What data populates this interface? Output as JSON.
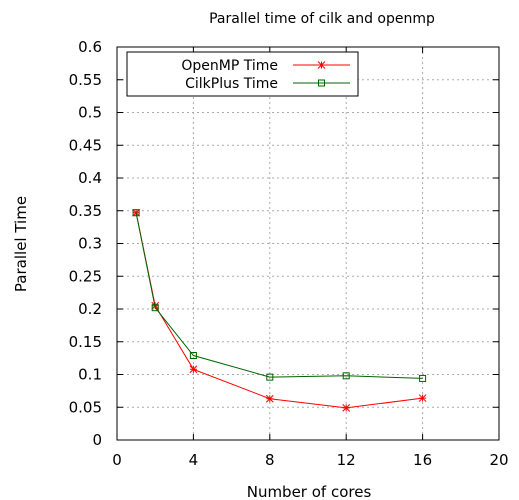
{
  "chart_data": {
    "type": "line",
    "title": "Parallel time of cilk and openmp",
    "xlabel": "Number of cores",
    "ylabel": "Parallel Time",
    "xlim": [
      0,
      20
    ],
    "ylim": [
      0,
      0.6
    ],
    "xticks": [
      "0",
      "4",
      "8",
      "12",
      "16",
      "20"
    ],
    "yticks": [
      "0",
      "0.05",
      "0.1",
      "0.15",
      "0.2",
      "0.25",
      "0.3",
      "0.35",
      "0.4",
      "0.45",
      "0.5",
      "0.55",
      "0.6"
    ],
    "grid": true,
    "legend_position": "top-left",
    "x": [
      1,
      2,
      4,
      8,
      12,
      16
    ],
    "series": [
      {
        "name": "OpenMP Time",
        "values": [
          0.347,
          0.205,
          0.108,
          0.063,
          0.049,
          0.064
        ],
        "color": "#ff0000",
        "marker": "star"
      },
      {
        "name": "CilkPlus Time",
        "values": [
          0.347,
          0.202,
          0.129,
          0.096,
          0.098,
          0.094
        ],
        "color": "#006400",
        "marker": "square"
      }
    ]
  }
}
